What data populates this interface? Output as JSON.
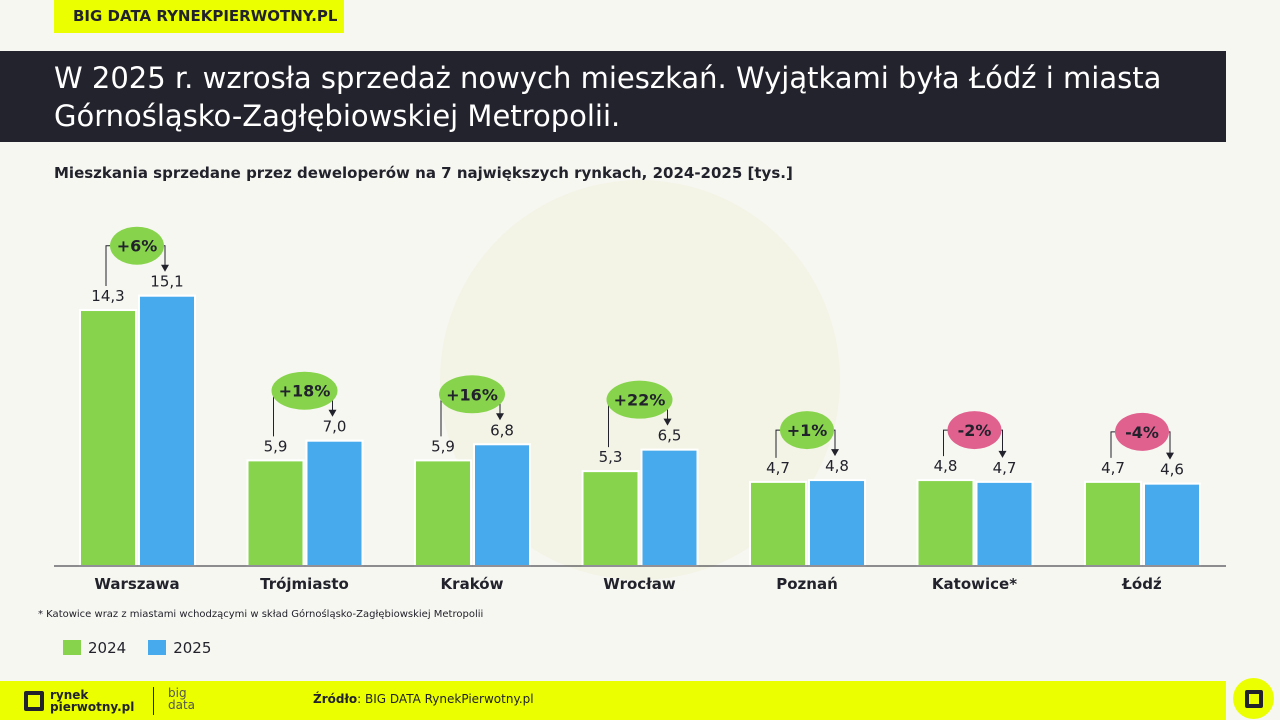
{
  "header_tag": "BIG DATA RYNEKPIERWOTNY.PL",
  "title": "W 2025 r. wzrosła sprzedaż nowych mieszkań. Wyjątkami była Łódź i miasta Górnośląsko-Zagłębiowskiej Metropolii.",
  "footnote": "* Katowice wraz z miastami wchodzącymi w skład Górnośląsko-Zagłębiowskiej Metropolii",
  "footer": {
    "logo_line1": "rynek",
    "logo_line2": "pierwotny.pl",
    "big": "big",
    "data": "data",
    "source_label": "Źródło",
    "source_text": ": BIG DATA RynekPierwotny.pl"
  },
  "colors": {
    "2024": "#87d44c",
    "2025": "#47aaec",
    "positive": "#87d44c",
    "negative": "#e0608e",
    "accent": "#ebff00"
  },
  "chart_data": {
    "type": "bar",
    "title": "Mieszkania sprzedane przez deweloperów na 7 największych rynkach, 2024-2025 [tys.]",
    "categories": [
      "Warszawa",
      "Trójmiasto",
      "Kraków",
      "Wrocław",
      "Poznań",
      "Katowice*",
      "Łódź"
    ],
    "series": [
      {
        "name": "2024",
        "values": [
          14.3,
          5.9,
          5.9,
          5.3,
          4.7,
          4.8,
          4.7
        ],
        "labels": [
          "14,3",
          "5,9",
          "5,9",
          "5,3",
          "4,7",
          "4,8",
          "4,7"
        ]
      },
      {
        "name": "2025",
        "values": [
          15.1,
          7.0,
          6.8,
          6.5,
          4.8,
          4.7,
          4.6
        ],
        "labels": [
          "15,1",
          "7,0",
          "6,8",
          "6,5",
          "4,8",
          "4,7",
          "4,6"
        ]
      }
    ],
    "changes": [
      "+6%",
      "+18%",
      "+16%",
      "+22%",
      "+1%",
      "-2%",
      "-4%"
    ],
    "legend": "bottom-left",
    "grid": false
  }
}
